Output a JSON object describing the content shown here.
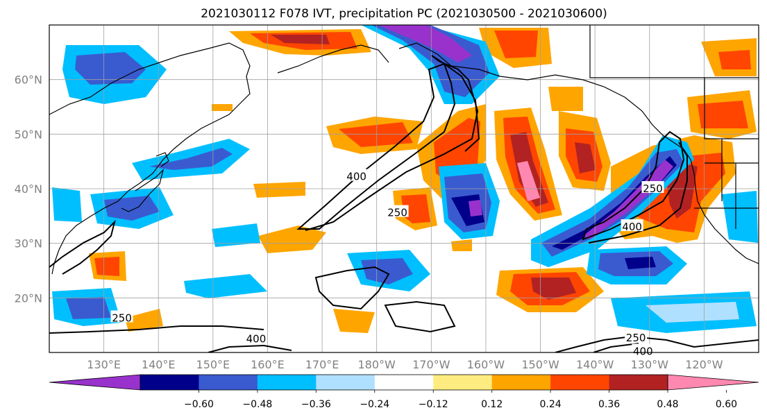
{
  "title": "2021030112 F078 IVT, precipitation PC (2021030500 - 2021030600)",
  "map": {
    "lat_labels": [
      "60°N",
      "50°N",
      "40°N",
      "30°N",
      "20°N"
    ],
    "lon_labels": [
      "130°E",
      "140°E",
      "150°E",
      "160°E",
      "170°E",
      "180°W",
      "170°W",
      "160°W",
      "150°W",
      "140°W",
      "130°W",
      "120°W"
    ],
    "extent": {
      "lon_min": 120,
      "lon_max": 250,
      "lat_min": 10,
      "lat_max": 70
    },
    "gridlines": true
  },
  "ivt_contours": {
    "levels": [
      250,
      400
    ],
    "labels": [
      {
        "text": "400",
        "lon": 157.9,
        "lat": 12.5
      },
      {
        "text": "250",
        "lon": 133.3,
        "lat": 16.3
      },
      {
        "text": "400",
        "lon": 176.3,
        "lat": 42.2
      },
      {
        "text": "250",
        "lon": 183.8,
        "lat": 35.6
      },
      {
        "text": "400",
        "lon": 226.8,
        "lat": 33.0
      },
      {
        "text": "250",
        "lon": 230.6,
        "lat": 40.0
      },
      {
        "text": "250",
        "lon": 227.5,
        "lat": 12.7
      },
      {
        "text": "400",
        "lon": 228.8,
        "lat": 10.2
      }
    ]
  },
  "colorbar": {
    "ticks": [
      "−0.60",
      "−0.48",
      "−0.36",
      "−0.24",
      "−0.12",
      "0.12",
      "0.24",
      "0.36",
      "0.48",
      "0.60"
    ],
    "colors": [
      "#9932cc",
      "#00008b",
      "#3a5bcf",
      "#00bfff",
      "#b0e0ff",
      "#ffffff",
      "#ffec80",
      "#ffa500",
      "#ff4500",
      "#b22222",
      "#ff88b0"
    ],
    "extend": "both"
  },
  "colors": {
    "land_outline": "#000000",
    "grid": "#a0a0a0"
  }
}
